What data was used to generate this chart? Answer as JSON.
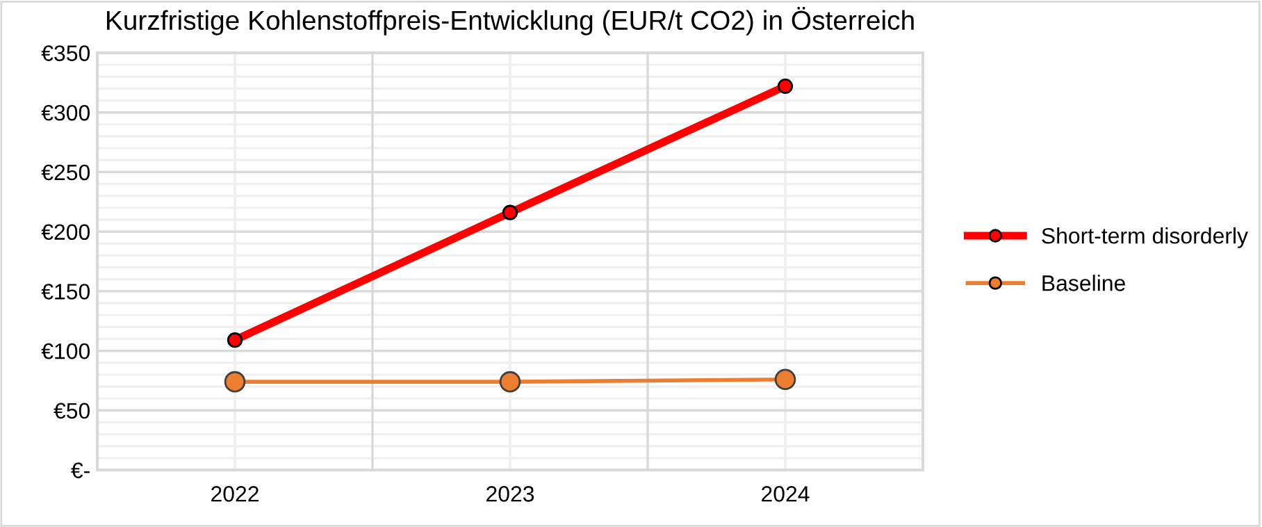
{
  "chart_data": {
    "type": "line",
    "title": "Kurzfristige Kohlenstoffpreis-Entwicklung (EUR/t CO2) in Österreich",
    "categories": [
      "2022",
      "2023",
      "2024"
    ],
    "series": [
      {
        "name": "Short-term disorderly",
        "color": "#ff0000",
        "values": [
          109,
          216,
          322
        ]
      },
      {
        "name": "Baseline",
        "color": "#ed7d31",
        "values": [
          74,
          74,
          76
        ]
      }
    ],
    "ylim": [
      0,
      350
    ],
    "yticks": [
      {
        "value": 0,
        "label": "€-"
      },
      {
        "value": 50,
        "label": "€50"
      },
      {
        "value": 100,
        "label": "€100"
      },
      {
        "value": 150,
        "label": "€150"
      },
      {
        "value": 200,
        "label": "€200"
      },
      {
        "value": 250,
        "label": "€250"
      },
      {
        "value": 300,
        "label": "€300"
      },
      {
        "value": 350,
        "label": "€350"
      }
    ],
    "grid": true,
    "legend": "right",
    "marker": "circle",
    "line_style": "solid"
  }
}
